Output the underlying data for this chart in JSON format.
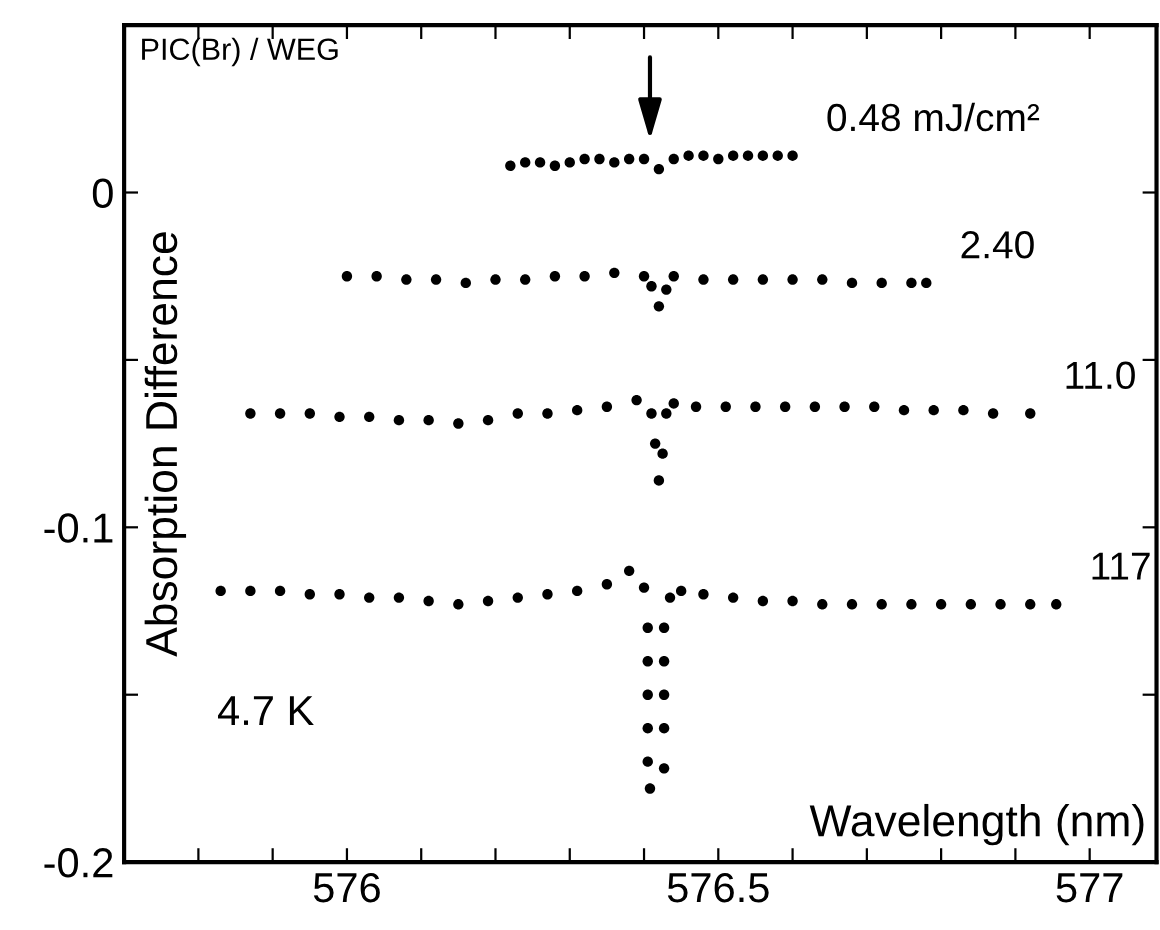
{
  "chart_data": {
    "type": "scatter",
    "xlabel": "Wavelength (nm)",
    "ylabel": "Absorption Difference",
    "annotations": [
      "PIC(Br) / WEG",
      "4.7 K"
    ],
    "marker": "circle",
    "grid": false,
    "legend": "right",
    "xlim": [
      575.7,
      577.09
    ],
    "ylim": [
      -0.2,
      0.05
    ],
    "xticks": [
      {
        "value": 575.8,
        "label": null
      },
      {
        "value": 575.9,
        "label": null
      },
      576,
      {
        "value": 576.1,
        "label": null
      },
      {
        "value": 576.2,
        "label": null
      },
      {
        "value": 576.3,
        "label": null
      },
      {
        "value": 576.4,
        "label": null
      },
      576.5,
      {
        "value": 576.6,
        "label": null
      },
      {
        "value": 576.7,
        "label": null
      },
      {
        "value": 576.8,
        "label": null
      },
      {
        "value": 576.9,
        "label": null
      },
      577
    ],
    "yticks": [
      -0.2,
      {
        "value": -0.15,
        "label": null
      },
      -0.1,
      {
        "value": -0.05,
        "label": null
      },
      0
    ],
    "series": [
      {
        "name": "0.48 mJ/cm²",
        "color": "#000000",
        "x": [
          576.22,
          576.24,
          576.26,
          576.28,
          576.3,
          576.32,
          576.34,
          576.36,
          576.38,
          576.4,
          576.42,
          576.44,
          576.46,
          576.48,
          576.5,
          576.52,
          576.54,
          576.56,
          576.58,
          576.6
        ],
        "values": [
          0.008,
          0.009,
          0.009,
          0.008,
          0.009,
          0.01,
          0.01,
          0.009,
          0.01,
          0.01,
          0.007,
          0.01,
          0.011,
          0.011,
          0.01,
          0.011,
          0.011,
          0.011,
          0.011,
          0.011
        ]
      },
      {
        "name": "2.40",
        "color": "#000000",
        "x": [
          576.0,
          576.04,
          576.08,
          576.12,
          576.16,
          576.2,
          576.24,
          576.28,
          576.32,
          576.36,
          576.4,
          576.41,
          576.42,
          576.43,
          576.44,
          576.48,
          576.52,
          576.56,
          576.6,
          576.64,
          576.68,
          576.72,
          576.76,
          576.78
        ],
        "values": [
          -0.025,
          -0.025,
          -0.026,
          -0.026,
          -0.027,
          -0.026,
          -0.026,
          -0.025,
          -0.025,
          -0.024,
          -0.025,
          -0.028,
          -0.034,
          -0.029,
          -0.025,
          -0.026,
          -0.026,
          -0.026,
          -0.026,
          -0.026,
          -0.027,
          -0.027,
          -0.027,
          -0.027
        ]
      },
      {
        "name": "11.0",
        "color": "#000000",
        "x": [
          575.87,
          575.91,
          575.95,
          575.99,
          576.03,
          576.07,
          576.11,
          576.15,
          576.19,
          576.23,
          576.27,
          576.31,
          576.35,
          576.39,
          576.41,
          576.415,
          576.42,
          576.425,
          576.43,
          576.44,
          576.47,
          576.51,
          576.55,
          576.59,
          576.63,
          576.67,
          576.71,
          576.75,
          576.79,
          576.83,
          576.87,
          576.92
        ],
        "values": [
          -0.066,
          -0.066,
          -0.066,
          -0.067,
          -0.067,
          -0.068,
          -0.068,
          -0.069,
          -0.068,
          -0.066,
          -0.066,
          -0.065,
          -0.064,
          -0.062,
          -0.066,
          -0.075,
          -0.086,
          -0.078,
          -0.066,
          -0.063,
          -0.064,
          -0.064,
          -0.064,
          -0.064,
          -0.064,
          -0.064,
          -0.064,
          -0.065,
          -0.065,
          -0.065,
          -0.066,
          -0.066
        ]
      },
      {
        "name": "117",
        "color": "#000000",
        "x": [
          575.83,
          575.87,
          575.91,
          575.95,
          575.99,
          576.03,
          576.07,
          576.11,
          576.15,
          576.19,
          576.23,
          576.27,
          576.31,
          576.35,
          576.38,
          576.4,
          576.405,
          576.405,
          576.405,
          576.405,
          576.405,
          576.408,
          576.427,
          576.427,
          576.427,
          576.427,
          576.427,
          576.435,
          576.45,
          576.48,
          576.52,
          576.56,
          576.6,
          576.64,
          576.68,
          576.72,
          576.76,
          576.8,
          576.84,
          576.88,
          576.92,
          576.955
        ],
        "values": [
          -0.119,
          -0.119,
          -0.119,
          -0.12,
          -0.12,
          -0.121,
          -0.121,
          -0.122,
          -0.123,
          -0.122,
          -0.121,
          -0.12,
          -0.119,
          -0.117,
          -0.113,
          -0.118,
          -0.13,
          -0.14,
          -0.15,
          -0.16,
          -0.17,
          -0.178,
          -0.172,
          -0.16,
          -0.15,
          -0.14,
          -0.13,
          -0.121,
          -0.119,
          -0.12,
          -0.121,
          -0.122,
          -0.122,
          -0.123,
          -0.123,
          -0.123,
          -0.123,
          -0.123,
          -0.123,
          -0.123,
          -0.123,
          -0.123
        ]
      }
    ]
  }
}
